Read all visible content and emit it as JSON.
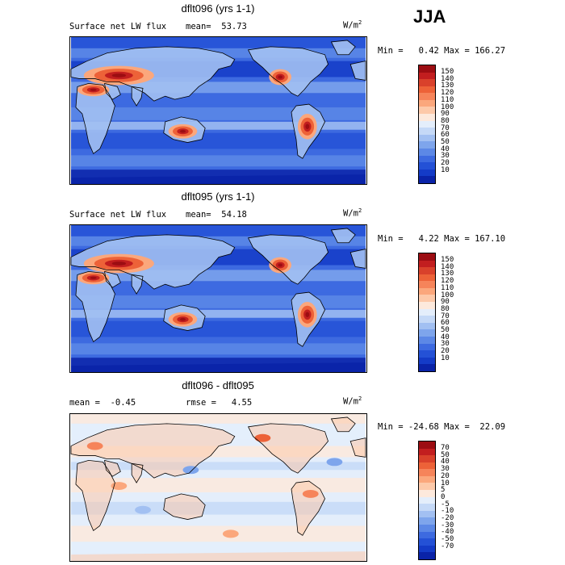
{
  "season": "JJA",
  "panels": [
    {
      "title": "dflt096 (yrs 1-1)",
      "left_label": "Surface net LW flux",
      "stat_label": "mean=  53.73",
      "units": "W/m",
      "units_exp": "2",
      "minmax": "Min =   0.42 Max = 166.27",
      "colorbar_labels": [
        "150",
        "140",
        "130",
        "120",
        "110",
        "100",
        "90",
        "80",
        "70",
        "60",
        "50",
        "40",
        "30",
        "20",
        "10"
      ],
      "colors": [
        "#9c0d12",
        "#c21e1f",
        "#d9412b",
        "#ed6238",
        "#f6845a",
        "#fba77c",
        "#fdc9a9",
        "#fde9dc",
        "#e4eefb",
        "#c5d9f7",
        "#a2c0f2",
        "#7ea5ec",
        "#5c88e6",
        "#3d6ae0",
        "#2451d6",
        "#143bc7",
        "#0a23a8"
      ],
      "mean_value": 53.73
    },
    {
      "title": "dflt095 (yrs 1-1)",
      "left_label": "Surface net LW flux",
      "stat_label": "mean=  54.18",
      "units": "W/m",
      "units_exp": "2",
      "minmax": "Min =   4.22 Max = 167.10",
      "colorbar_labels": [
        "150",
        "140",
        "130",
        "120",
        "110",
        "100",
        "90",
        "80",
        "70",
        "60",
        "50",
        "40",
        "30",
        "20",
        "10"
      ],
      "colors": [
        "#9c0d12",
        "#c21e1f",
        "#d9412b",
        "#ed6238",
        "#f6845a",
        "#fba77c",
        "#fdc9a9",
        "#fde9dc",
        "#e4eefb",
        "#c5d9f7",
        "#a2c0f2",
        "#7ea5ec",
        "#5c88e6",
        "#3d6ae0",
        "#2451d6",
        "#143bc7",
        "#0a23a8"
      ],
      "mean_value": 54.18
    },
    {
      "title": "dflt096 - dflt095",
      "left_label": "mean =  -0.45",
      "stat_label": "rmse =   4.55",
      "units": "W/m",
      "units_exp": "2",
      "minmax": "Min = -24.68 Max =  22.09",
      "colorbar_labels": [
        "70",
        "50",
        "40",
        "30",
        "20",
        "10",
        "5",
        "0",
        "-5",
        "-10",
        "-20",
        "-30",
        "-40",
        "-50",
        "-70"
      ],
      "colors": [
        "#9c0d12",
        "#c21e1f",
        "#d9412b",
        "#ed6238",
        "#f6845a",
        "#fba77c",
        "#fdc9a9",
        "#fde9dc",
        "#e4eefb",
        "#c5d9f7",
        "#a2c0f2",
        "#7ea5ec",
        "#5c88e6",
        "#3d6ae0",
        "#2451d6",
        "#143bc7",
        "#0a23a8"
      ],
      "mean_value": -0.45
    }
  ]
}
